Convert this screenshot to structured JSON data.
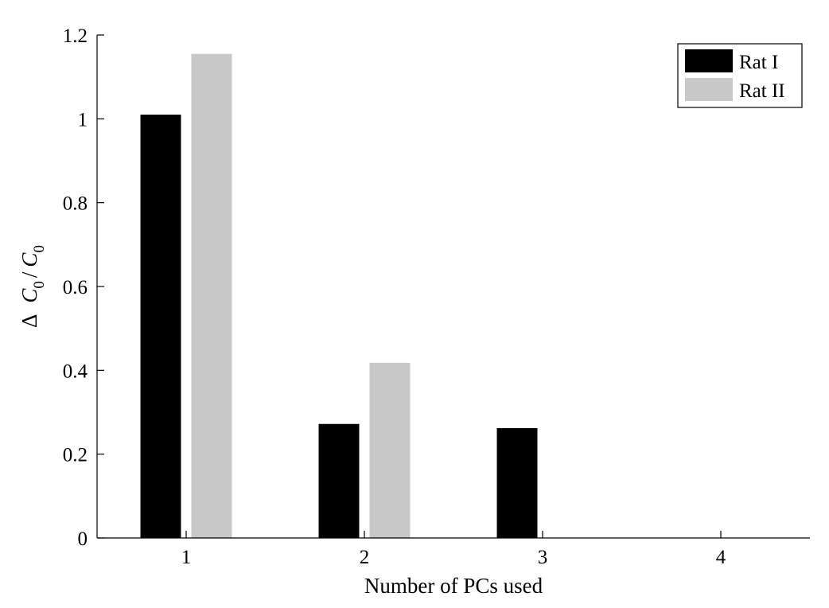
{
  "chart_data": {
    "type": "bar",
    "categories": [
      "1",
      "2",
      "3",
      "4"
    ],
    "series": [
      {
        "name": "Rat I",
        "color": "#000000",
        "values": [
          1.01,
          0.272,
          0.262,
          0
        ]
      },
      {
        "name": "Rat II",
        "color": "#c8c8c8",
        "values": [
          1.155,
          0.418,
          0,
          0
        ]
      }
    ],
    "xlabel": "Number of PCs used",
    "ylabel": {
      "prefix": "Δ",
      "num": "C",
      "num_sub": "0",
      "den": "C",
      "den_sub": "0"
    },
    "ylim": [
      0,
      1.2
    ],
    "yticks": [
      0,
      0.2,
      0.4,
      0.6,
      0.8,
      1,
      1.2
    ],
    "yticklabels": [
      "0",
      "0.2",
      "0.4",
      "0.6",
      "0.8",
      "1",
      "1.2"
    ],
    "grid": false,
    "legend_position": "top-right"
  }
}
